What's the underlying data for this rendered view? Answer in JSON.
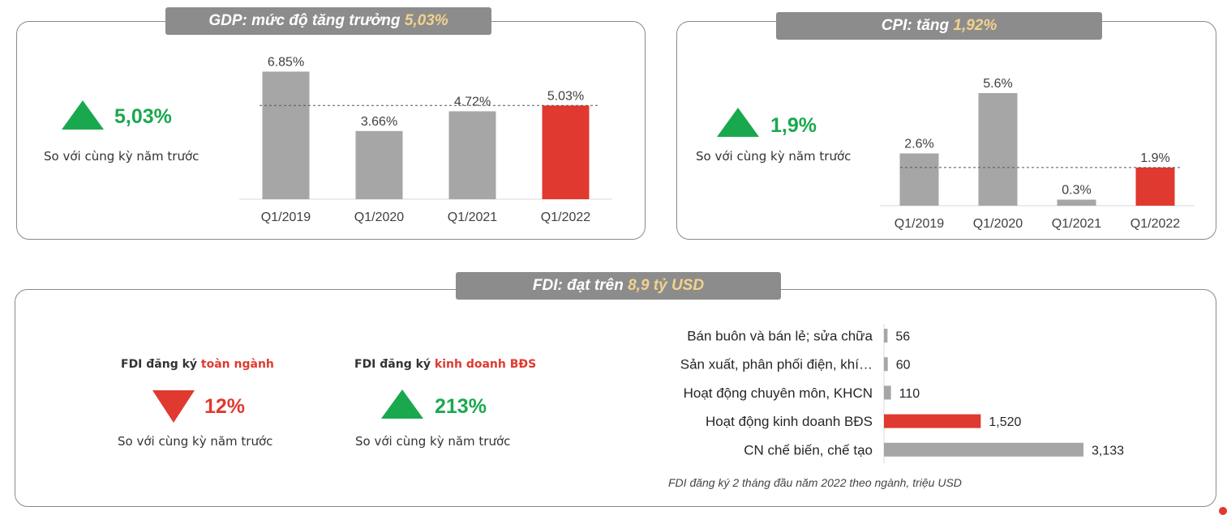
{
  "gdp": {
    "tab_label": "GDP: mức độ tăng trưởng",
    "tab_value": "5,03%",
    "kpi_value": "5,03%",
    "kpi_caption": "So với cùng kỳ năm trước"
  },
  "cpi": {
    "tab_label": "CPI: tăng",
    "tab_value": "1,92%",
    "kpi_value": "1,9%",
    "kpi_caption": "So với cùng kỳ năm trước"
  },
  "fdi": {
    "tab_label": "FDI: đạt trên",
    "tab_value": "8,9 tỷ USD",
    "total_head": "FDI đăng ký",
    "total_head_hl": "toàn ngành",
    "total_value": "12%",
    "total_caption": "So với cùng kỳ năm trước",
    "re_head": "FDI đăng ký",
    "re_head_hl": "kinh doanh BĐS",
    "re_value": "213%",
    "re_caption": "So với cùng kỳ năm trước",
    "note": "FDI đăng ký 2 tháng đầu năm 2022 theo ngành, triệu USD"
  },
  "colors": {
    "gray": "#a6a6a6",
    "red": "#e0392f",
    "green": "#1aa84f",
    "tab": "#8c8c8c",
    "highlight": "#f3d28a"
  },
  "chart_data": [
    {
      "id": "gdp",
      "type": "bar",
      "categories": [
        "Q1/2019",
        "Q1/2020",
        "Q1/2021",
        "Q1/2022"
      ],
      "values": [
        6.85,
        3.66,
        4.72,
        5.03
      ],
      "labels": [
        "6.85%",
        "3.66%",
        "4.72%",
        "5.03%"
      ],
      "highlight_index": 3,
      "reference_line": 5.03,
      "ylim": [
        0,
        7
      ]
    },
    {
      "id": "cpi",
      "type": "bar",
      "categories": [
        "Q1/2019",
        "Q1/2020",
        "Q1/2021",
        "Q1/2022"
      ],
      "values": [
        2.6,
        5.6,
        0.3,
        1.9
      ],
      "labels": [
        "2.6%",
        "5.6%",
        "0.3%",
        "1.9%"
      ],
      "highlight_index": 3,
      "reference_line": 1.9,
      "ylim": [
        0,
        5.8
      ]
    },
    {
      "id": "fdi",
      "type": "bar",
      "orientation": "horizontal",
      "categories": [
        "Bán buôn và bán lẻ; sửa chữa",
        "Sản xuất, phân phối điện, khí…",
        "Hoạt động chuyên môn, KHCN",
        "Hoạt động kinh doanh BĐS",
        "CN chế biến, chế tạo"
      ],
      "values": [
        56,
        60,
        110,
        1520,
        3133
      ],
      "labels": [
        "56",
        "60",
        "110",
        "1,520",
        "3,133"
      ],
      "highlight_index": 3,
      "xlim": [
        0,
        3133
      ]
    }
  ]
}
